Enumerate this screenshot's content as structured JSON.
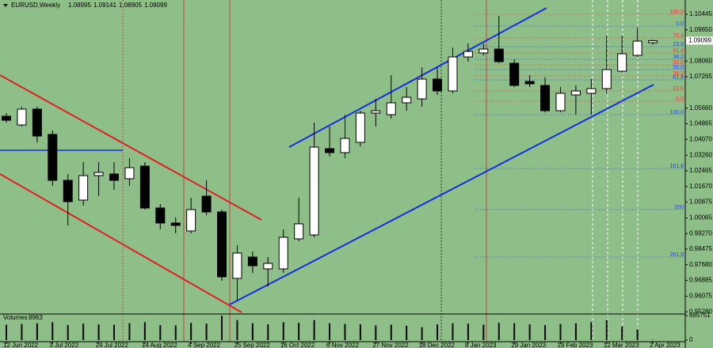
{
  "chart_data": {
    "type": "candlestick",
    "title": "EURUSD,Weekly",
    "categories": [
      "12 Jun 2022",
      null,
      null,
      "3 Jul 2022",
      null,
      null,
      "24 Jul 2022",
      null,
      null,
      "14 Aug 2022",
      null,
      null,
      "4 Sep 2022",
      null,
      null,
      "25 Sep 2022",
      null,
      null,
      "16 Oct 2022",
      null,
      null,
      "6 Nov 2022",
      null,
      null,
      "27 Nov 2022",
      null,
      null,
      "18 Dec 2022",
      null,
      null,
      "8 Jan 2023",
      null,
      null,
      "29 Jan 2023",
      null,
      null,
      "19 Feb 2023",
      null,
      null,
      "12 Mar 2023",
      null,
      null,
      "2 Apr 2023"
    ],
    "open": [
      1.05246,
      1.04803,
      1.05609,
      1.04319,
      1.01982,
      1.00974,
      1.02223,
      1.02304,
      1.02062,
      1.02707,
      1.00571,
      0.99805,
      0.99402,
      1.01176,
      1.0037,
      0.96984,
      0.98072,
      0.97468,
      0.97468,
      0.98999,
      0.99201,
      1.03594,
      1.03392,
      1.03916,
      1.05407,
      1.05326,
      1.05931,
      1.06132,
      1.0714,
      1.06535,
      1.08268,
      1.0847,
      1.08671,
      1.07946,
      1.07019,
      1.06818,
      1.05528,
      1.06334,
      1.06415,
      1.06656,
      1.07543,
      1.08349,
      1.08995
    ],
    "high": [
      1.05407,
      1.0573,
      1.0573,
      1.0452,
      1.02304,
      1.02908,
      1.02908,
      1.02908,
      1.0311,
      1.02908,
      1.00773,
      1.00087,
      1.01095,
      1.01982,
      1.0049,
      0.98677,
      0.98355,
      0.98072,
      0.99483,
      1.01095,
      1.04923,
      1.04722,
      1.05326,
      1.05528,
      1.06132,
      1.07341,
      1.06737,
      1.07744,
      1.07744,
      1.08752,
      1.08953,
      1.08953,
      1.10364,
      1.08147,
      1.07341,
      1.07221,
      1.06737,
      1.06818,
      1.0714,
      1.09356,
      1.09356,
      1.09759,
      1.09141
    ],
    "low": [
      1.04923,
      1.04722,
      1.03916,
      1.017,
      0.99684,
      1.00692,
      1.01176,
      1.01498,
      1.017,
      1.0049,
      0.99483,
      0.99281,
      0.99281,
      1.00208,
      0.96863,
      0.95856,
      0.97266,
      0.96581,
      0.97266,
      0.98878,
      0.9908,
      1.03191,
      1.0311,
      1.03714,
      1.04722,
      1.05125,
      1.05528,
      1.0573,
      1.06334,
      1.06415,
      1.08027,
      1.08349,
      1.07946,
      1.06737,
      1.06737,
      1.05447,
      1.05447,
      1.05326,
      1.05326,
      1.06415,
      1.07462,
      1.08268,
      1.08905
    ],
    "close": [
      1.05044,
      1.05609,
      1.04238,
      1.01982,
      1.00893,
      1.02223,
      1.02385,
      1.01982,
      1.02626,
      1.00571,
      0.99805,
      0.99684,
      1.0049,
      1.0037,
      0.97065,
      0.98274,
      0.97629,
      0.9775,
      0.9908,
      0.99765,
      1.03674,
      1.03392,
      1.04117,
      1.05407,
      1.05528,
      1.05931,
      1.06213,
      1.0714,
      1.06535,
      1.08268,
      1.0855,
      1.08671,
      1.08027,
      1.06818,
      1.06898,
      1.05528,
      1.06415,
      1.06535,
      1.06656,
      1.07624,
      1.0843,
      1.09074,
      1.09099
    ],
    "up_color": "#ffffff",
    "down_color": "#000000",
    "ylim": [
      0.9517,
      1.1117
    ],
    "yticks": [
      1.10445,
      {
        "value": 1.0965,
        "label": "1.09650"
      },
      {
        "value": 1.0806,
        "label": "1.08060"
      },
      1.07265,
      {
        "value": 1.0566,
        "label": "1.05660"
      },
      1.04865,
      {
        "value": 1.0407,
        "label": "1.04070"
      },
      {
        "value": 1.0326,
        "label": "1.03260"
      },
      1.02465,
      {
        "value": 1.0167,
        "label": "1.01670"
      },
      1.00875,
      1.00065,
      {
        "value": 0.9927,
        "label": "0.99270"
      },
      0.98475,
      {
        "value": 0.9768,
        "label": "0.97680"
      },
      0.96885,
      0.96075,
      {
        "value": 0.9528,
        "label": "0.95280"
      }
    ],
    "fib_levels": [
      {
        "label": "100.0",
        "price": 1.10445,
        "color": "#ff3030"
      },
      {
        "label": "0.0",
        "price": 1.0984,
        "color": "#2040ff"
      },
      {
        "label": "76.4",
        "price": 1.09236,
        "color": "#ff3030"
      },
      {
        "label": "23.6",
        "price": 1.08792,
        "color": "#2040ff"
      },
      {
        "label": "61.8",
        "price": 1.0847,
        "color": "#ff3030"
      },
      {
        "label": "38.2",
        "price": 1.08147,
        "color": "#2040ff"
      },
      {
        "label": "50.0",
        "price": 1.07865,
        "color": "#ff3030"
      },
      {
        "label": "50.0",
        "price": 1.07624,
        "color": "#2040ff"
      },
      {
        "label": "38.2",
        "price": 1.07301,
        "color": "#ff3030"
      },
      {
        "label": "61.8",
        "price": 1.071,
        "color": "#2040ff"
      },
      {
        "label": "23.6",
        "price": 1.06535,
        "color": "#ff3030"
      },
      {
        "label": "0.0",
        "price": 1.06012,
        "color": "#ff3030"
      },
      {
        "label": "100.0",
        "price": 1.05326,
        "color": "#2040ff"
      },
      {
        "label": "161.8",
        "price": 1.02586,
        "color": "#2040ff"
      },
      {
        "label": "200",
        "price": 1.0049,
        "color": "#2040ff"
      },
      {
        "label": "261.8",
        "price": 0.98072,
        "color": "#2040ff"
      }
    ],
    "volume": {
      "label": "Volumes",
      "values": [
        430000,
        450000,
        470000,
        500000,
        420000,
        460000,
        440000,
        430000,
        470000,
        500000,
        420000,
        410000,
        480000,
        460000,
        680000,
        560000,
        470000,
        440000,
        500000,
        480000,
        560000,
        470000,
        450000,
        440000,
        410000,
        430000,
        400000,
        360000,
        440000,
        470000,
        460000,
        430000,
        480000,
        470000,
        440000,
        420000,
        450000,
        470000,
        500000,
        560000,
        380000,
        300000,
        8963
      ],
      "ylim": [
        0,
        685751
      ],
      "yticks": [
        685751,
        0
      ],
      "color": "#000000"
    }
  }
}
